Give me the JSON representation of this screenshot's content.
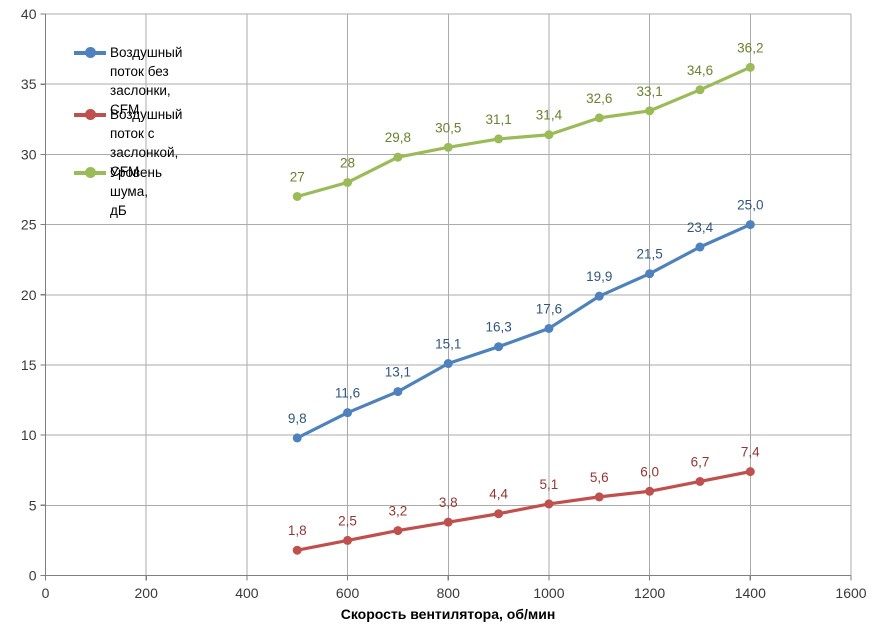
{
  "chart_data": {
    "type": "line",
    "title": "",
    "xlabel": "Скорость вентилятора, об/мин",
    "ylabel": "",
    "x": [
      500,
      600,
      700,
      800,
      900,
      1000,
      1100,
      1200,
      1300,
      1400
    ],
    "xlim": [
      0,
      1600
    ],
    "ylim": [
      0,
      40
    ],
    "x_ticks": [
      0,
      200,
      400,
      600,
      800,
      1000,
      1200,
      1400,
      1600
    ],
    "y_ticks": [
      0,
      5,
      10,
      15,
      20,
      25,
      30,
      35,
      40
    ],
    "grid": true,
    "legend_position": "top-left-inside",
    "series": [
      {
        "name": "Воздушный поток без заслонки, CFM",
        "values": [
          9.8,
          11.6,
          13.1,
          15.1,
          16.3,
          17.6,
          19.9,
          21.5,
          23.4,
          25.0
        ],
        "labels": [
          "9,8",
          "11,6",
          "13,1",
          "15,1",
          "16,3",
          "17,6",
          "19,9",
          "21,5",
          "23,4",
          "25,0"
        ],
        "color": "#4F81BD",
        "label_color": "#31567E"
      },
      {
        "name": "Воздушный поток с заслонкой, CFM",
        "values": [
          1.8,
          2.5,
          3.2,
          3.8,
          4.4,
          5.1,
          5.6,
          6.0,
          6.7,
          7.4
        ],
        "labels": [
          "1,8",
          "2,5",
          "3,2",
          "3,8",
          "4,4",
          "5,1",
          "5,6",
          "6,0",
          "6,7",
          "7,4"
        ],
        "color": "#C0504D",
        "label_color": "#943634"
      },
      {
        "name": "Уровень шума, дБ",
        "values": [
          27,
          28,
          29.8,
          30.5,
          31.1,
          31.4,
          32.6,
          33.1,
          34.6,
          36.2
        ],
        "labels": [
          "27",
          "28",
          "29,8",
          "30,5",
          "31,1",
          "31,4",
          "32,6",
          "33,1",
          "34,6",
          "36,2"
        ],
        "color": "#9BBB59",
        "label_color": "#6B8230"
      }
    ],
    "colors": {
      "gridline": "#ABABAB",
      "axis": "#7F7F7F",
      "tick_label": "#3A3A3A",
      "legend_text": "#000000",
      "background": "#FFFFFF"
    }
  }
}
